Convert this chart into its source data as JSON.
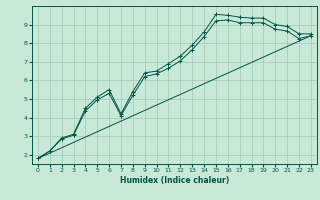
{
  "xlabel": "Humidex (Indice chaleur)",
  "ylabel": "",
  "bg_color": "#c8e8d8",
  "grid_color": "#a0c8b8",
  "line_color": "#005544",
  "xlim": [
    -0.5,
    23.5
  ],
  "ylim": [
    1.5,
    10.0
  ],
  "xticks": [
    0,
    1,
    2,
    3,
    4,
    5,
    6,
    7,
    8,
    9,
    10,
    11,
    12,
    13,
    14,
    15,
    16,
    17,
    18,
    19,
    20,
    21,
    22,
    23
  ],
  "yticks": [
    2,
    3,
    4,
    5,
    6,
    7,
    8,
    9
  ],
  "line1_x": [
    0,
    1,
    2,
    3,
    4,
    5,
    6,
    7,
    8,
    9,
    10,
    11,
    12,
    13,
    14,
    15,
    16,
    17,
    18,
    19,
    20,
    21,
    22,
    23
  ],
  "line1_y": [
    1.8,
    2.2,
    2.9,
    3.1,
    4.5,
    5.1,
    5.5,
    4.2,
    5.4,
    6.4,
    6.5,
    6.9,
    7.3,
    7.9,
    8.6,
    9.55,
    9.5,
    9.4,
    9.35,
    9.35,
    9.0,
    8.9,
    8.5,
    8.5
  ],
  "line2_x": [
    0,
    1,
    2,
    3,
    4,
    5,
    6,
    7,
    8,
    9,
    10,
    11,
    12,
    13,
    14,
    15,
    16,
    17,
    18,
    19,
    20,
    21,
    22,
    23
  ],
  "line2_y": [
    1.8,
    2.2,
    2.85,
    3.05,
    4.35,
    4.95,
    5.3,
    4.1,
    5.2,
    6.2,
    6.35,
    6.65,
    7.05,
    7.65,
    8.35,
    9.2,
    9.25,
    9.1,
    9.1,
    9.1,
    8.75,
    8.65,
    8.25,
    8.4
  ],
  "line3_x": [
    0,
    23
  ],
  "line3_y": [
    1.8,
    8.4
  ]
}
